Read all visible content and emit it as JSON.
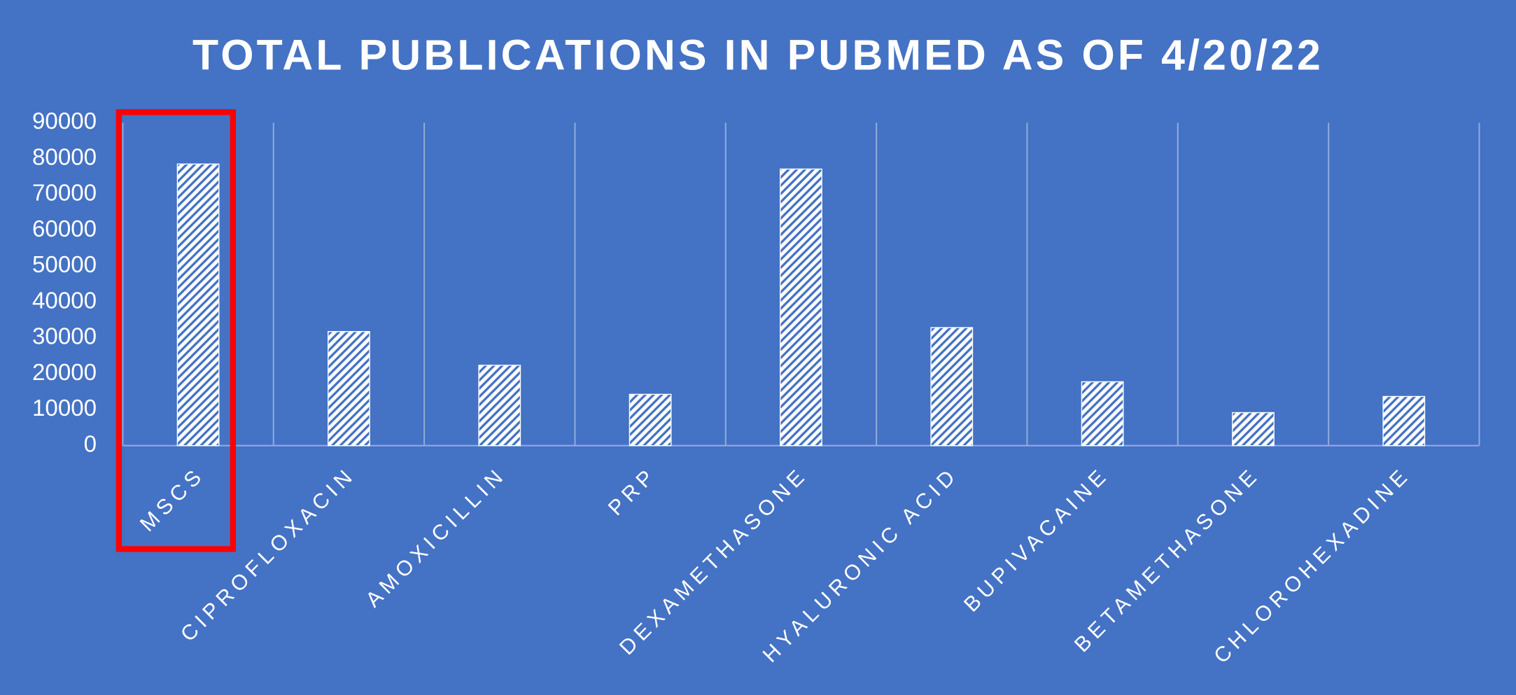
{
  "chart_data": {
    "type": "bar",
    "title": "TOTAL PUBLICATIONS IN PUBMED AS OF 4/20/22",
    "categories": [
      "MSCS",
      "CIPROFLOXACIN",
      "AMOXICILLIN",
      "PRP",
      "DEXAMETHASONE",
      "HYALURONIC ACID",
      "BUPIVACAINE",
      "BETAMETHASONE",
      "CHLOROHEXADINE"
    ],
    "values": [
      78500,
      31800,
      22400,
      14300,
      77100,
      32900,
      17800,
      9200,
      13700
    ],
    "color": "#ffffff",
    "ylim": [
      0,
      90000
    ],
    "yticks": [
      0,
      10000,
      20000,
      30000,
      40000,
      50000,
      60000,
      70000,
      80000,
      90000
    ],
    "grid": true
  }
}
